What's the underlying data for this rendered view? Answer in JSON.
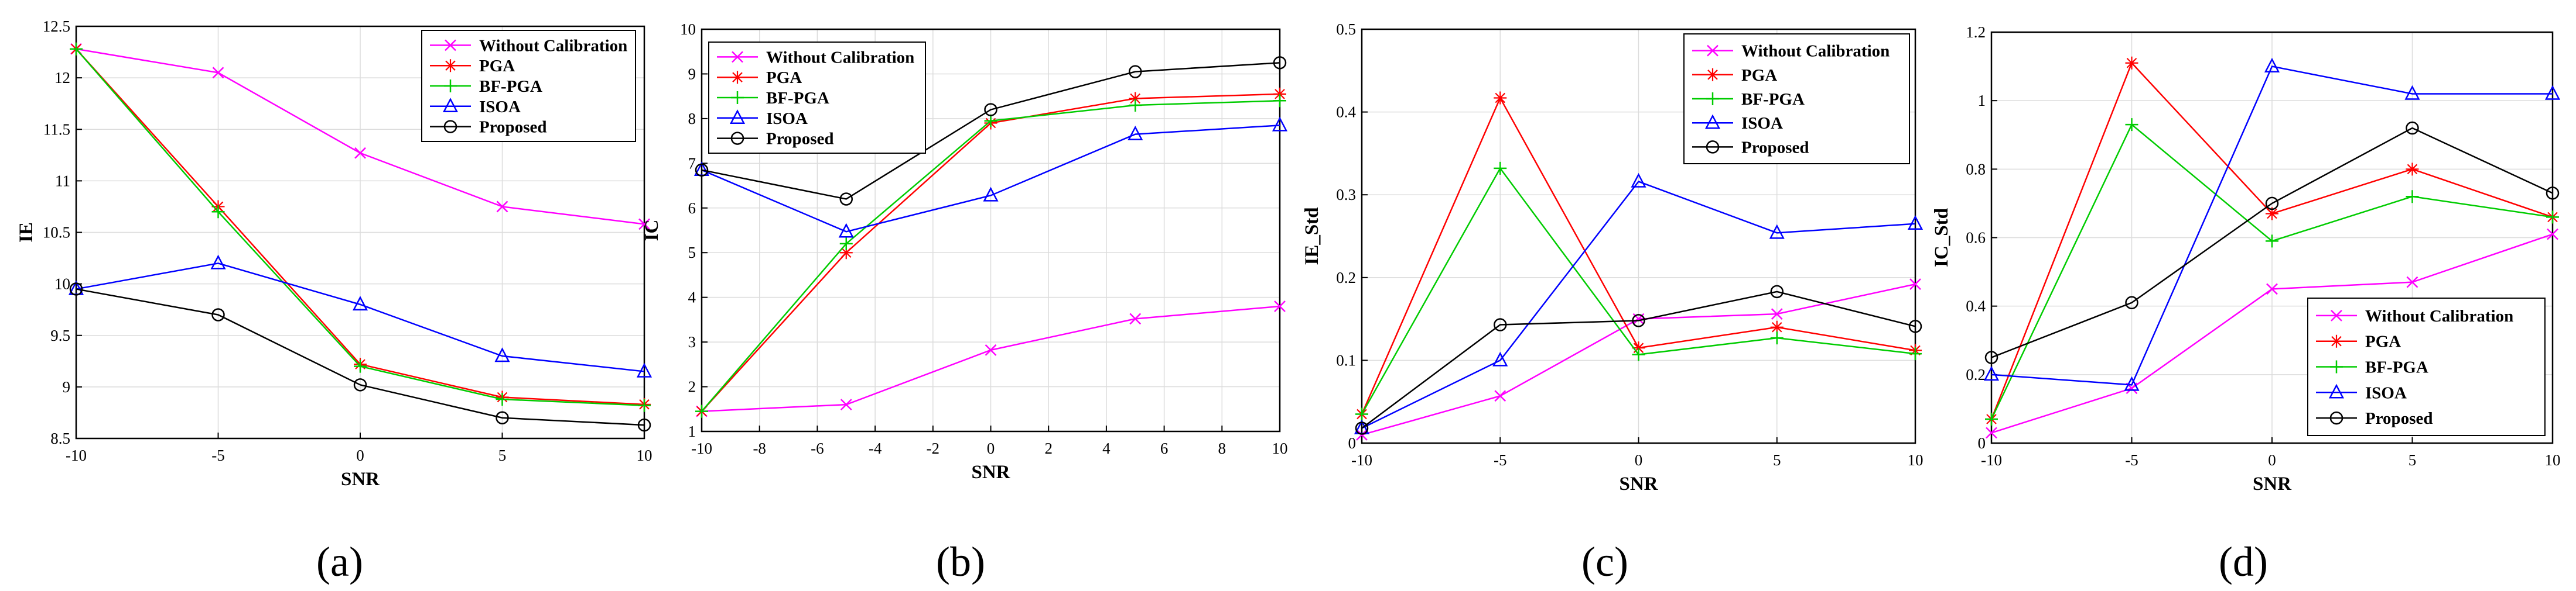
{
  "chart_data": [
    {
      "type": "line",
      "panel_label": "(a)",
      "xlabel": "SNR",
      "ylabel": "IE",
      "x": [
        -10,
        -5,
        0,
        5,
        10
      ],
      "xlim": [
        -10,
        10
      ],
      "ylim": [
        8.5,
        12.5
      ],
      "xticks": [
        "-10",
        "-5",
        "0",
        "5",
        "10"
      ],
      "yticks": [
        "8.5",
        "9",
        "9.5",
        "10",
        "10.5",
        "11",
        "11.5",
        "12",
        "12.5"
      ],
      "grid": true,
      "legend_position": "top-right",
      "series": [
        {
          "name": "Without Calibration",
          "color": "#ff00ff",
          "marker": "x",
          "values": [
            12.28,
            12.05,
            11.27,
            10.75,
            10.58
          ]
        },
        {
          "name": "PGA",
          "color": "#ff0000",
          "marker": "asterisk",
          "values": [
            12.28,
            10.75,
            9.22,
            8.9,
            8.83
          ]
        },
        {
          "name": "BF-PGA",
          "color": "#00cc00",
          "marker": "plus",
          "values": [
            12.28,
            10.7,
            9.2,
            8.88,
            8.82
          ]
        },
        {
          "name": "ISOA",
          "color": "#0000ff",
          "marker": "triangle",
          "values": [
            9.95,
            10.2,
            9.8,
            9.3,
            9.15
          ]
        },
        {
          "name": "Proposed",
          "color": "#000000",
          "marker": "circle",
          "values": [
            9.95,
            9.7,
            9.02,
            8.7,
            8.63
          ]
        }
      ]
    },
    {
      "type": "line",
      "panel_label": "(b)",
      "xlabel": "SNR",
      "ylabel": "IC",
      "x": [
        -10,
        -5,
        0,
        5,
        10
      ],
      "xlim": [
        -10,
        10
      ],
      "ylim": [
        1,
        10
      ],
      "xticks": [
        "-10",
        "-8",
        "-6",
        "-4",
        "-2",
        "0",
        "2",
        "4",
        "6",
        "8",
        "10"
      ],
      "yticks": [
        "1",
        "2",
        "3",
        "4",
        "5",
        "6",
        "7",
        "8",
        "9",
        "10"
      ],
      "grid": true,
      "legend_position": "top-left",
      "series": [
        {
          "name": "Without Calibration",
          "color": "#ff00ff",
          "marker": "x",
          "values": [
            1.45,
            1.6,
            2.82,
            3.52,
            3.8
          ]
        },
        {
          "name": "PGA",
          "color": "#ff0000",
          "marker": "asterisk",
          "values": [
            1.45,
            5.0,
            7.9,
            8.45,
            8.55
          ]
        },
        {
          "name": "BF-PGA",
          "color": "#00cc00",
          "marker": "plus",
          "values": [
            1.45,
            5.2,
            7.95,
            8.3,
            8.4
          ]
        },
        {
          "name": "ISOA",
          "color": "#0000ff",
          "marker": "triangle",
          "values": [
            6.85,
            5.47,
            6.28,
            7.65,
            7.85
          ]
        },
        {
          "name": "Proposed",
          "color": "#000000",
          "marker": "circle",
          "values": [
            6.85,
            6.2,
            8.2,
            9.05,
            9.25
          ]
        }
      ]
    },
    {
      "type": "line",
      "panel_label": "(c)",
      "xlabel": "SNR",
      "ylabel": "IE_Std",
      "x": [
        -10,
        -5,
        0,
        5,
        10
      ],
      "xlim": [
        -10,
        10
      ],
      "ylim": [
        0,
        0.5
      ],
      "xticks": [
        "-10",
        "-5",
        "0",
        "5",
        "10"
      ],
      "yticks": [
        "0",
        "0.1",
        "0.2",
        "0.3",
        "0.4",
        "0.5"
      ],
      "grid": true,
      "legend_position": "top-right",
      "series": [
        {
          "name": "Without Calibration",
          "color": "#ff00ff",
          "marker": "x",
          "values": [
            0.01,
            0.057,
            0.15,
            0.156,
            0.192
          ]
        },
        {
          "name": "PGA",
          "color": "#ff0000",
          "marker": "asterisk",
          "values": [
            0.035,
            0.417,
            0.115,
            0.14,
            0.112
          ]
        },
        {
          "name": "BF-PGA",
          "color": "#00cc00",
          "marker": "plus",
          "values": [
            0.035,
            0.332,
            0.107,
            0.127,
            0.108
          ]
        },
        {
          "name": "ISOA",
          "color": "#0000ff",
          "marker": "triangle",
          "values": [
            0.018,
            0.1,
            0.316,
            0.254,
            0.265
          ]
        },
        {
          "name": "Proposed",
          "color": "#000000",
          "marker": "circle",
          "values": [
            0.018,
            0.143,
            0.148,
            0.183,
            0.141
          ]
        }
      ]
    },
    {
      "type": "line",
      "panel_label": "(d)",
      "xlabel": "SNR",
      "ylabel": "IC_Std",
      "x": [
        -10,
        -5,
        0,
        5,
        10
      ],
      "xlim": [
        -10,
        10
      ],
      "ylim": [
        0,
        1.2
      ],
      "xticks": [
        "-10",
        "-5",
        "0",
        "5",
        "10"
      ],
      "yticks": [
        "0",
        "0.2",
        "0.4",
        "0.6",
        "0.8",
        "1",
        "1.2"
      ],
      "grid": true,
      "legend_position": "bottom-right",
      "series": [
        {
          "name": "Without Calibration",
          "color": "#ff00ff",
          "marker": "x",
          "values": [
            0.03,
            0.16,
            0.45,
            0.47,
            0.61
          ]
        },
        {
          "name": "PGA",
          "color": "#ff0000",
          "marker": "asterisk",
          "values": [
            0.07,
            1.11,
            0.67,
            0.8,
            0.66
          ]
        },
        {
          "name": "BF-PGA",
          "color": "#00cc00",
          "marker": "plus",
          "values": [
            0.07,
            0.93,
            0.59,
            0.72,
            0.66
          ]
        },
        {
          "name": "ISOA",
          "color": "#0000ff",
          "marker": "triangle",
          "values": [
            0.2,
            0.17,
            1.1,
            1.02,
            1.02
          ]
        },
        {
          "name": "Proposed",
          "color": "#000000",
          "marker": "circle",
          "values": [
            0.25,
            0.41,
            0.7,
            0.92,
            0.73
          ]
        }
      ]
    }
  ]
}
